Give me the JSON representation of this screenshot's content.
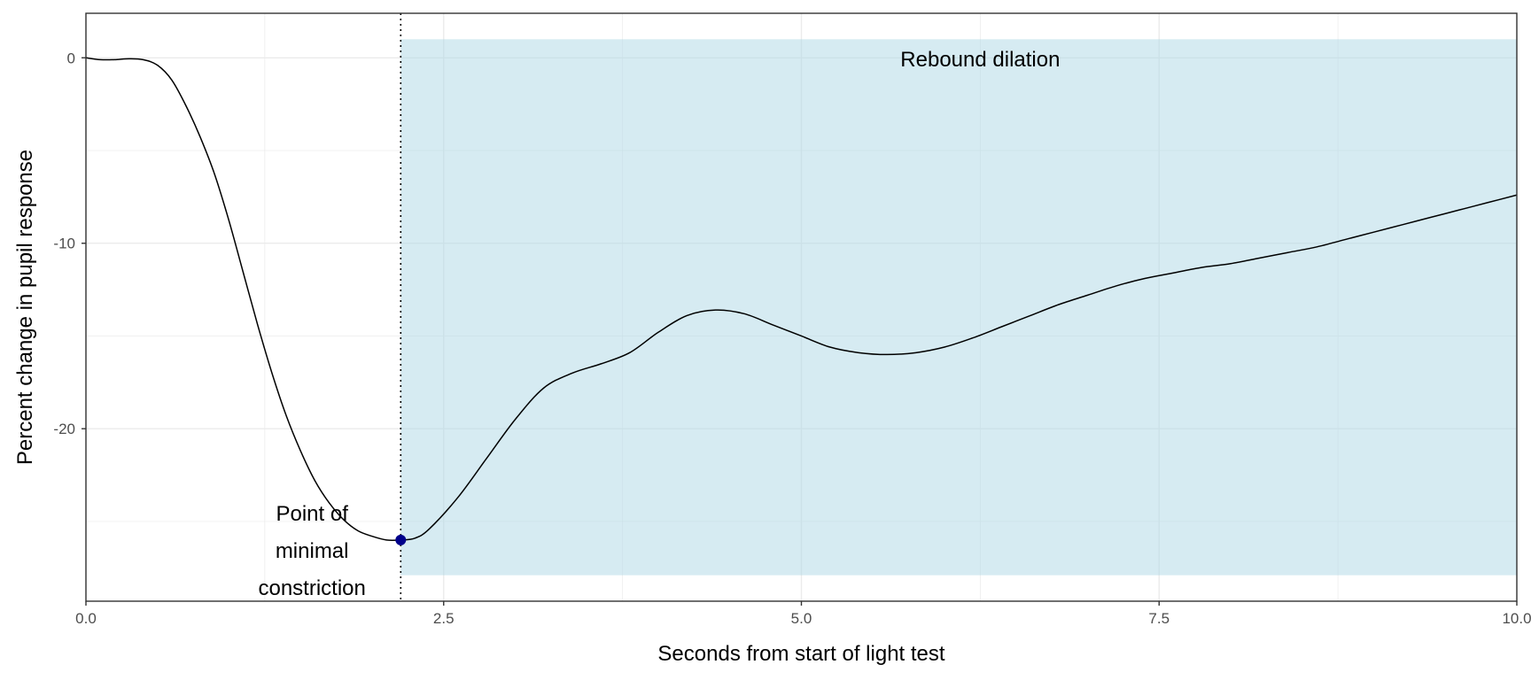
{
  "chart_data": {
    "type": "line",
    "title": "",
    "xlabel": "Seconds from start of light test",
    "ylabel": "Percent change in pupil response",
    "xlim": [
      0,
      10
    ],
    "ylim": [
      -29.3,
      2.4
    ],
    "grid": true,
    "x_ticks": [
      0,
      2.5,
      5,
      7.5,
      10
    ],
    "x_tick_labels": [
      "0.0",
      "2.5",
      "5.0",
      "7.5",
      "10.0"
    ],
    "y_ticks": [
      0,
      -10,
      -20
    ],
    "y_tick_labels": [
      "0",
      "-10",
      "-20"
    ],
    "series": [
      {
        "x": [
          0,
          0.1,
          0.2,
          0.3,
          0.4,
          0.5,
          0.6,
          0.7,
          0.8,
          0.9,
          1.0,
          1.1,
          1.2,
          1.3,
          1.4,
          1.5,
          1.6,
          1.7,
          1.8,
          1.9,
          2.0,
          2.1,
          2.2,
          2.3,
          2.4,
          2.6,
          2.8,
          3.0,
          3.2,
          3.4,
          3.6,
          3.8,
          4.0,
          4.2,
          4.4,
          4.6,
          4.8,
          5.0,
          5.2,
          5.4,
          5.6,
          5.8,
          6.0,
          6.2,
          6.4,
          6.6,
          6.8,
          7.0,
          7.2,
          7.4,
          7.6,
          7.8,
          8.0,
          8.2,
          8.4,
          8.6,
          8.8,
          9.0,
          9.2,
          9.4,
          9.6,
          9.8,
          10.0
        ],
        "y": [
          0,
          -0.1,
          -0.1,
          -0.05,
          -0.1,
          -0.4,
          -1.2,
          -2.6,
          -4.3,
          -6.3,
          -8.8,
          -11.6,
          -14.4,
          -17.0,
          -19.3,
          -21.2,
          -22.8,
          -24.0,
          -24.9,
          -25.5,
          -25.8,
          -26.0,
          -26.0,
          -25.9,
          -25.4,
          -23.7,
          -21.6,
          -19.5,
          -17.8,
          -17.0,
          -16.5,
          -15.9,
          -14.8,
          -13.9,
          -13.6,
          -13.8,
          -14.4,
          -15.0,
          -15.6,
          -15.9,
          -16.0,
          -15.9,
          -15.6,
          -15.1,
          -14.5,
          -13.9,
          -13.3,
          -12.8,
          -12.3,
          -11.9,
          -11.6,
          -11.3,
          -11.1,
          -10.8,
          -10.5,
          -10.2,
          -9.8,
          -9.4,
          -9.0,
          -8.6,
          -8.2,
          -7.8,
          -7.4
        ]
      }
    ],
    "point": {
      "x": 2.2,
      "y": -26.0
    },
    "vline_x": 2.2,
    "shaded_region": {
      "x": [
        2.2,
        10
      ],
      "y": [
        -27.9,
        1.0
      ]
    },
    "annotations": [
      {
        "lines": [
          "Point of",
          "minimal",
          "constriction"
        ]
      },
      {
        "lines": [
          "Rebound dilation"
        ]
      }
    ],
    "colors": {
      "line": "#000000",
      "point": "#00008B",
      "shade": "#ADD8E6",
      "vline": "#000000",
      "grid": "#EBEBEB",
      "border": "#333333"
    }
  }
}
